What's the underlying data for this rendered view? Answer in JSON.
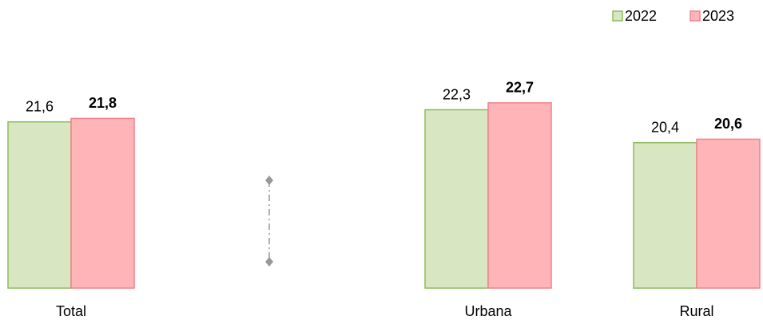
{
  "chart_data": {
    "type": "bar",
    "categories": [
      "Total",
      null,
      "Urbana",
      "Rural"
    ],
    "series": [
      {
        "name": "2022",
        "color": "#d8e6c2",
        "stroke": "#8dbb5f",
        "values": [
          21.6,
          null,
          22.3,
          20.4
        ],
        "value_labels": [
          "21,6",
          null,
          "22,3",
          "20,4"
        ]
      },
      {
        "name": "2023",
        "color": "#ffb5b8",
        "stroke": "#f0828a",
        "values": [
          21.8,
          null,
          22.7,
          20.6
        ],
        "value_labels": [
          "21,8",
          null,
          "22,7",
          "20,6"
        ]
      }
    ],
    "ylim": [
      12,
      23.5
    ],
    "legend": "top-right"
  }
}
